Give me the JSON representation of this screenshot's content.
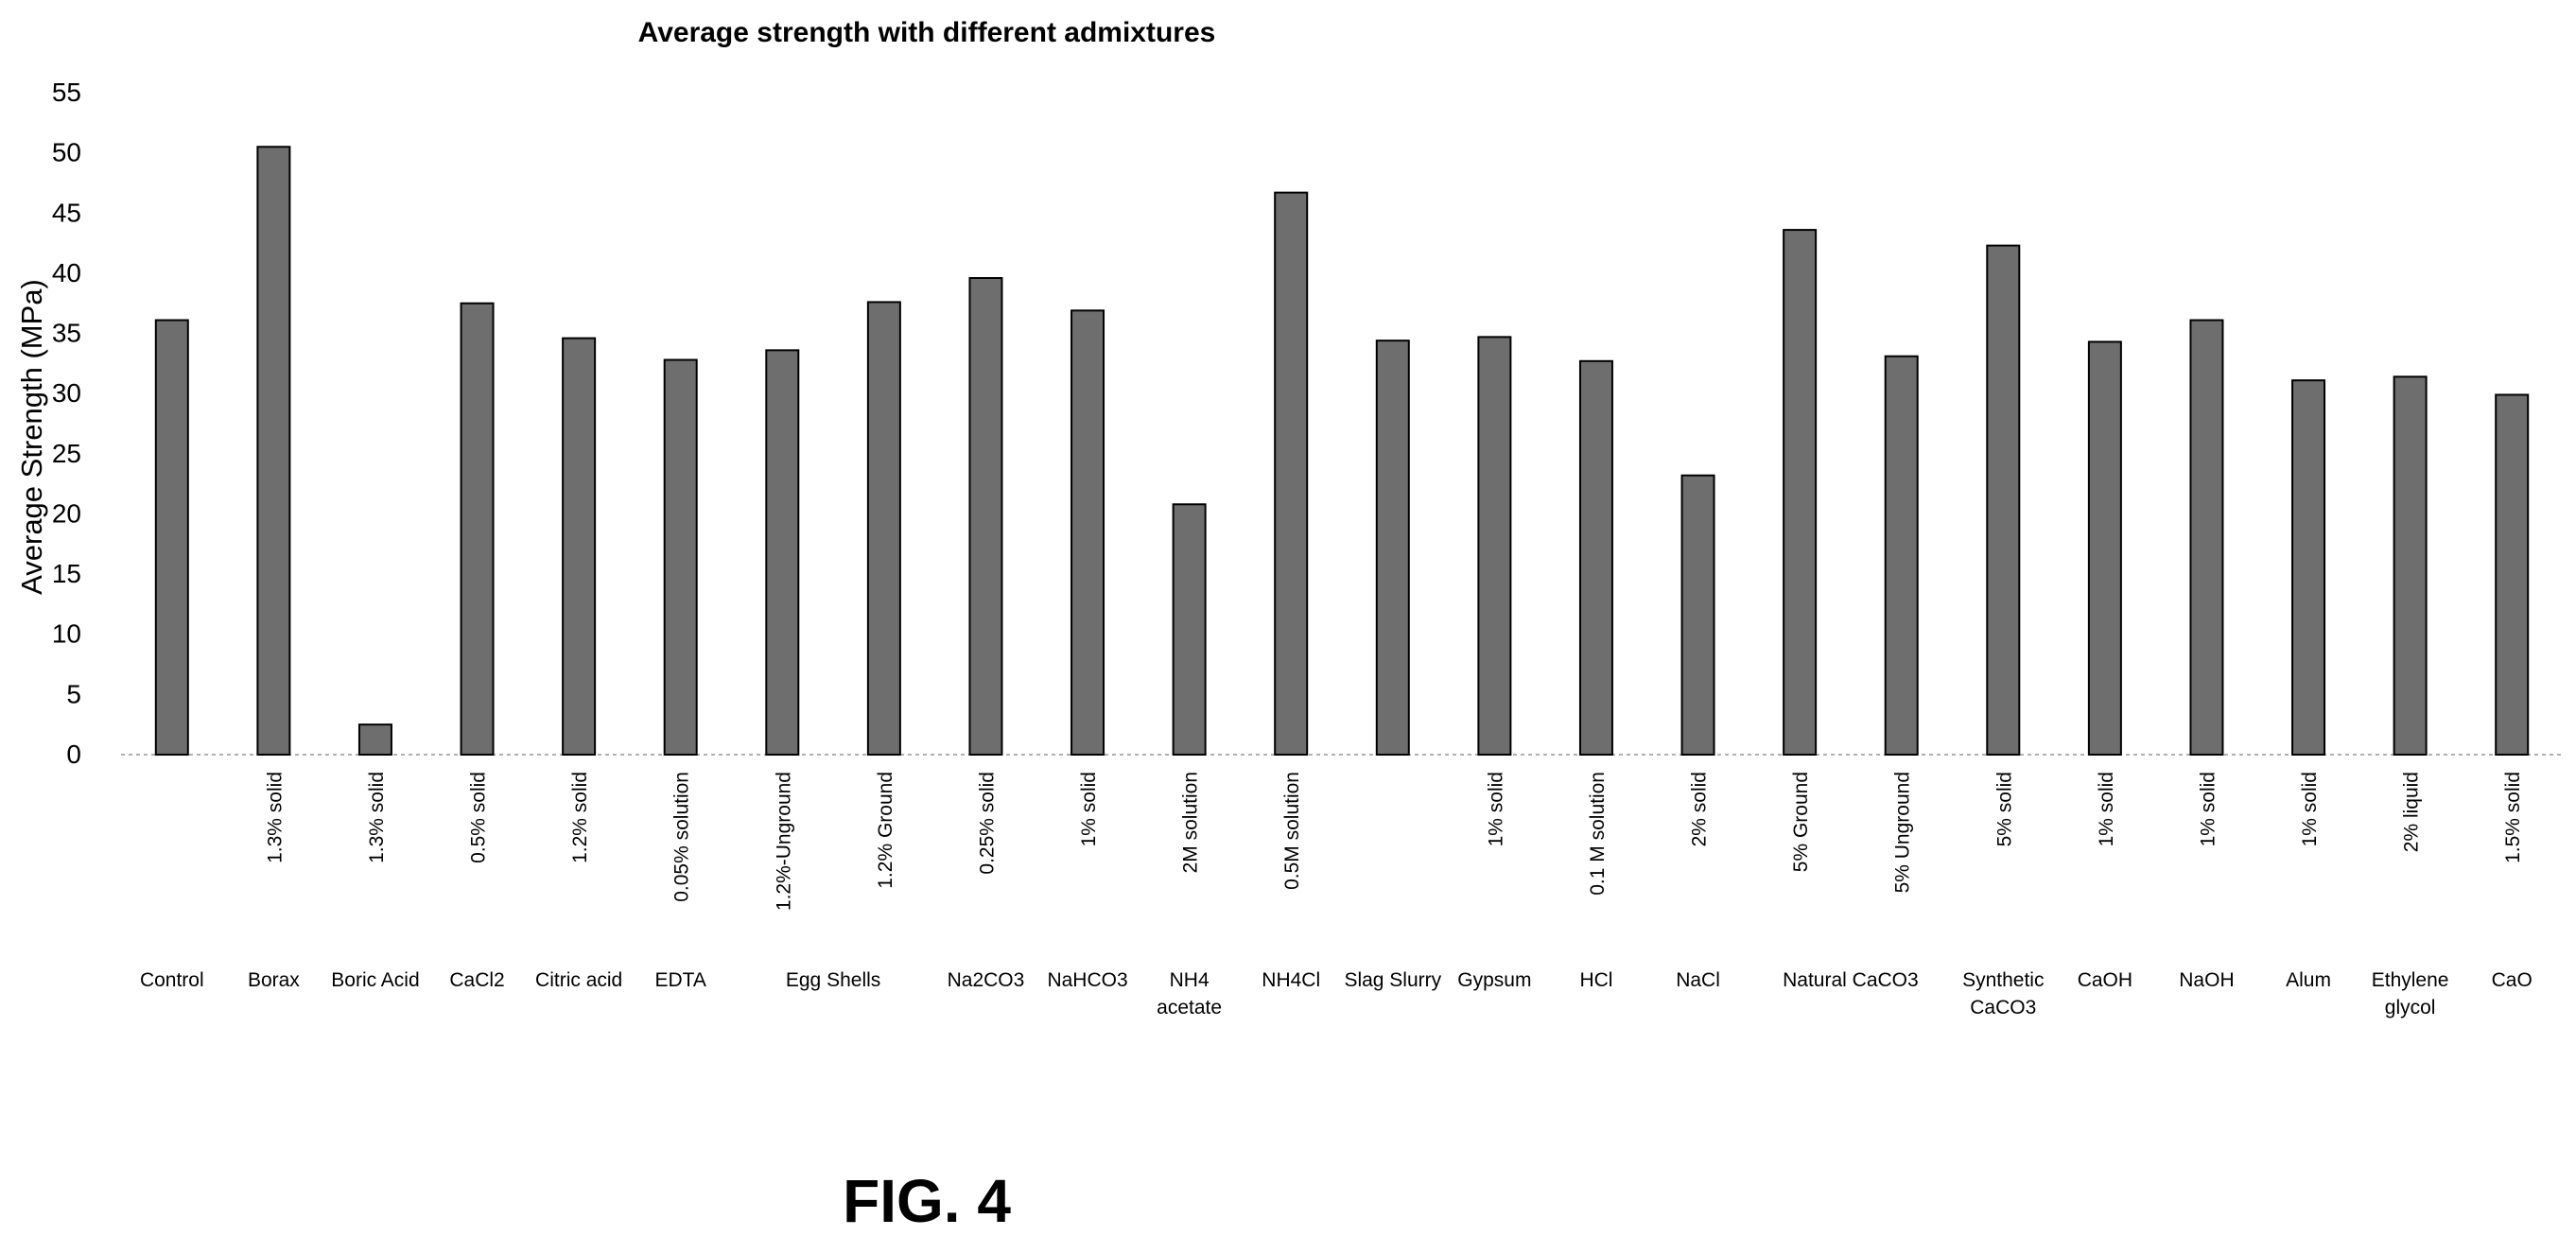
{
  "figure_label": "FIG. 4",
  "chart_data": {
    "type": "bar",
    "title": "Average strength with different admixtures",
    "xlabel": "",
    "ylabel": "Average Strength (MPa)",
    "ylim": [
      0,
      55
    ],
    "yticks": [
      0,
      5,
      10,
      15,
      20,
      25,
      30,
      35,
      40,
      45,
      50,
      55
    ],
    "grid": false,
    "bars": [
      {
        "group": "Control",
        "detail": "",
        "value": 36.1
      },
      {
        "group": "Borax",
        "detail": "1.3% solid",
        "value": 50.5
      },
      {
        "group": "Boric Acid",
        "detail": "1.3% solid",
        "value": 2.5
      },
      {
        "group": "CaCl2",
        "detail": "0.5% solid",
        "value": 37.5
      },
      {
        "group": "Citric acid",
        "detail": "1.2% solid",
        "value": 34.6
      },
      {
        "group": "EDTA",
        "detail": "0.05% solution",
        "value": 32.8
      },
      {
        "group": "Egg Shells",
        "detail": "1.2%-Unground",
        "value": 33.6
      },
      {
        "group": "Egg Shells",
        "detail": "1.2% Ground",
        "value": 37.6
      },
      {
        "group": "Na2CO3",
        "detail": "0.25% solid",
        "value": 39.6
      },
      {
        "group": "NaHCO3",
        "detail": "1% solid",
        "value": 36.9
      },
      {
        "group": "NH4 acetate",
        "detail": "2M solution",
        "value": 20.8
      },
      {
        "group": "NH4Cl",
        "detail": "0.5M solution",
        "value": 46.7
      },
      {
        "group": "Slag Slurry",
        "detail": "",
        "value": 34.4
      },
      {
        "group": "Gypsum",
        "detail": "1% solid",
        "value": 34.7
      },
      {
        "group": "HCl",
        "detail": "0.1 M solution",
        "value": 32.7
      },
      {
        "group": "NaCl",
        "detail": "2% solid",
        "value": 23.2
      },
      {
        "group": "Natural CaCO3",
        "detail": "5% Ground",
        "value": 43.6
      },
      {
        "group": "Natural CaCO3",
        "detail": "5% Unground",
        "value": 33.1
      },
      {
        "group": "Synthetic CaCO3",
        "detail": "5% solid",
        "value": 42.3
      },
      {
        "group": "CaOH",
        "detail": "1% solid",
        "value": 34.3
      },
      {
        "group": "NaOH",
        "detail": "1% solid",
        "value": 36.1
      },
      {
        "group": "Alum",
        "detail": "1% solid",
        "value": 31.1
      },
      {
        "group": "Ethylene glycol",
        "detail": "2% liquid",
        "value": 31.4
      },
      {
        "group": "CaO",
        "detail": "1.5% solid",
        "value": 29.9
      }
    ],
    "category_labels": [
      {
        "lines": [
          "Control"
        ],
        "bars": [
          0
        ]
      },
      {
        "lines": [
          "Borax"
        ],
        "bars": [
          1
        ]
      },
      {
        "lines": [
          "Boric Acid"
        ],
        "bars": [
          2
        ]
      },
      {
        "lines": [
          "CaCl2"
        ],
        "bars": [
          3
        ]
      },
      {
        "lines": [
          "Citric acid"
        ],
        "bars": [
          4
        ]
      },
      {
        "lines": [
          "EDTA"
        ],
        "bars": [
          5
        ]
      },
      {
        "lines": [
          "Egg Shells"
        ],
        "bars": [
          6,
          7
        ]
      },
      {
        "lines": [
          "Na2CO3"
        ],
        "bars": [
          8
        ]
      },
      {
        "lines": [
          "NaHCO3"
        ],
        "bars": [
          9
        ]
      },
      {
        "lines": [
          "NH4",
          "acetate"
        ],
        "bars": [
          10
        ]
      },
      {
        "lines": [
          "NH4Cl"
        ],
        "bars": [
          11
        ]
      },
      {
        "lines": [
          "Slag Slurry"
        ],
        "bars": [
          12
        ]
      },
      {
        "lines": [
          "Gypsum"
        ],
        "bars": [
          13
        ]
      },
      {
        "lines": [
          "HCl"
        ],
        "bars": [
          14
        ]
      },
      {
        "lines": [
          "NaCl"
        ],
        "bars": [
          15
        ]
      },
      {
        "lines": [
          "Natural CaCO3"
        ],
        "bars": [
          16,
          17
        ]
      },
      {
        "lines": [
          "Synthetic",
          "CaCO3"
        ],
        "bars": [
          18
        ]
      },
      {
        "lines": [
          "CaOH"
        ],
        "bars": [
          19
        ]
      },
      {
        "lines": [
          "NaOH"
        ],
        "bars": [
          20
        ]
      },
      {
        "lines": [
          "Alum"
        ],
        "bars": [
          21
        ]
      },
      {
        "lines": [
          "Ethylene",
          "glycol"
        ],
        "bars": [
          22
        ]
      },
      {
        "lines": [
          "CaO"
        ],
        "bars": [
          23
        ]
      }
    ]
  }
}
